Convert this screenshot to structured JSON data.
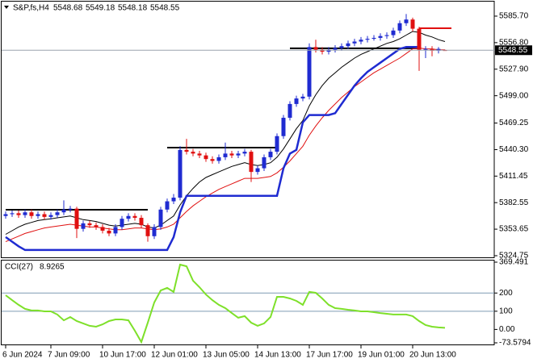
{
  "chart_data": [
    {
      "type": "candlestick",
      "title": "S&P,fs,H4",
      "categories": [
        "6 Jun 2024",
        null,
        null,
        null,
        null,
        null,
        null,
        "7 Jun 09:00",
        null,
        null,
        null,
        null,
        null,
        null,
        null,
        "10 Jun 17:00",
        null,
        null,
        null,
        null,
        null,
        null,
        null,
        "12 Jun 01:00",
        null,
        null,
        null,
        null,
        null,
        null,
        null,
        "13 Jun 05:00",
        null,
        null,
        null,
        null,
        null,
        null,
        null,
        "14 Jun 13:00",
        null,
        null,
        null,
        null,
        null,
        null,
        null,
        "17 Jun 17:00",
        null,
        null,
        null,
        null,
        null,
        null,
        null,
        "19 Jun 01:00",
        null,
        null,
        null,
        null,
        null,
        null,
        null,
        "20 Jun 13:00",
        null,
        null,
        null,
        null,
        null
      ],
      "open": [
        5368,
        5370,
        5371,
        5369,
        5372,
        5368,
        5370,
        5367,
        5369,
        5372,
        5375,
        5376,
        5354,
        5360,
        5358,
        5356,
        5352,
        5349,
        5356,
        5365,
        5368,
        5366,
        5358,
        5346,
        5356,
        5375,
        5384,
        5388,
        5440,
        5438,
        5436,
        5434,
        5430,
        5428,
        5432,
        5436,
        5434,
        5436,
        5438,
        5416,
        5420,
        5432,
        5438,
        5455,
        5475,
        5490,
        5496,
        5498,
        5552,
        5549,
        5547,
        5549,
        5551,
        5553,
        5556,
        5558,
        5560,
        5561,
        5562,
        5564,
        5565,
        5570,
        5578,
        5582,
        5572,
        5549,
        5550,
        5548,
        5548.68
      ],
      "high": [
        5373,
        5374,
        5374,
        5375,
        5375,
        5373,
        5373,
        5372,
        5375,
        5385,
        5379,
        5378,
        5363,
        5363,
        5361,
        5359,
        5355,
        5359,
        5368,
        5371,
        5371,
        5369,
        5360,
        5359,
        5378,
        5387,
        5392,
        5444,
        5452,
        5441,
        5439,
        5437,
        5433,
        5435,
        5448,
        5439,
        5439,
        5441,
        5440,
        5423,
        5435,
        5441,
        5458,
        5478,
        5493,
        5499,
        5501,
        5556,
        5560,
        5552,
        5552,
        5554,
        5556,
        5559,
        5561,
        5563,
        5564,
        5565,
        5567,
        5568,
        5573,
        5581,
        5588,
        5584,
        5574,
        5553,
        5553,
        5552,
        5549.18
      ],
      "low": [
        5365,
        5367,
        5366,
        5366,
        5365,
        5365,
        5364,
        5364,
        5366,
        5369,
        5372,
        5344,
        5351,
        5355,
        5353,
        5349,
        5346,
        5346,
        5353,
        5362,
        5363,
        5355,
        5340,
        5343,
        5353,
        5372,
        5381,
        5385,
        5435,
        5433,
        5431,
        5427,
        5425,
        5425,
        5429,
        5431,
        5431,
        5433,
        5405,
        5413,
        5417,
        5429,
        5435,
        5452,
        5472,
        5487,
        5493,
        5495,
        5546,
        5544,
        5544,
        5546,
        5548,
        5550,
        5553,
        5555,
        5557,
        5559,
        5559,
        5561,
        5562,
        5567,
        5575,
        5569,
        5526,
        5540,
        5542,
        5545,
        5548.18
      ],
      "close": [
        5370,
        5371,
        5369,
        5372,
        5368,
        5370,
        5367,
        5369,
        5372,
        5375,
        5376,
        5354,
        5360,
        5358,
        5356,
        5352,
        5349,
        5356,
        5365,
        5368,
        5366,
        5358,
        5346,
        5356,
        5375,
        5384,
        5388,
        5440,
        5438,
        5436,
        5434,
        5430,
        5428,
        5432,
        5436,
        5434,
        5436,
        5438,
        5416,
        5420,
        5432,
        5438,
        5455,
        5475,
        5490,
        5496,
        5498,
        5552,
        5549,
        5547,
        5549,
        5551,
        5553,
        5556,
        5558,
        5560,
        5561,
        5562,
        5564,
        5565,
        5570,
        5578,
        5582,
        5572,
        5549,
        5550,
        5548,
        5550,
        5548.55
      ],
      "up_color": "#1f2bd1",
      "down_color": "#e01010",
      "series": [
        {
          "color": "#000000",
          "values": [
            5348,
            5352,
            5356,
            5359,
            5361,
            5363,
            5364,
            5365,
            5366,
            5367,
            5368,
            5366,
            5364,
            5363,
            5362,
            5360,
            5358,
            5357,
            5358,
            5359,
            5360,
            5359,
            5356,
            5355,
            5358,
            5363,
            5368,
            5380,
            5390,
            5398,
            5405,
            5410,
            5413,
            5416,
            5419,
            5422,
            5424,
            5426,
            5424,
            5423,
            5424,
            5426,
            5432,
            5441,
            5452,
            5463,
            5472,
            5488,
            5500,
            5510,
            5518,
            5524,
            5530,
            5535,
            5540,
            5544,
            5547,
            5550,
            5553,
            5556,
            5558,
            5561,
            5565,
            5569,
            5568,
            5565,
            5563,
            5560,
            5558
          ]
        },
        {
          "color": "#e01010",
          "values": [
            5340,
            5343,
            5346,
            5349,
            5351,
            5353,
            5355,
            5356,
            5357,
            5358,
            5359,
            5358,
            5357,
            5356,
            5356,
            5355,
            5354,
            5353,
            5353,
            5354,
            5355,
            5355,
            5354,
            5353,
            5354,
            5356,
            5359,
            5366,
            5373,
            5379,
            5384,
            5389,
            5393,
            5397,
            5400,
            5403,
            5406,
            5409,
            5409,
            5409,
            5410,
            5411,
            5415,
            5421,
            5428,
            5436,
            5444,
            5456,
            5466,
            5475,
            5483,
            5490,
            5497,
            5503,
            5509,
            5514,
            5519,
            5524,
            5528,
            5532,
            5536,
            5540,
            5545,
            5550,
            5551,
            5550,
            5550,
            5549,
            5549
          ]
        },
        {
          "color": "#1f2bd1",
          "values": [
            5345,
            5340,
            5335,
            5331,
            5331,
            5331,
            5331,
            5331,
            5331,
            5331,
            5331,
            5331,
            5331,
            5331,
            5331,
            5331,
            5331,
            5331,
            5331,
            5331,
            5331,
            5331,
            5331,
            5331,
            5331,
            5331,
            5345,
            5372,
            5390,
            5390,
            5390,
            5390,
            5390,
            5390,
            5390,
            5390,
            5390,
            5390,
            5390,
            5390,
            5390,
            5390,
            5390,
            5420,
            5436,
            5440,
            5470,
            5478,
            5478,
            5478,
            5478,
            5480,
            5490,
            5500,
            5510,
            5518,
            5525,
            5530,
            5535,
            5540,
            5545,
            5550,
            5552,
            5552,
            5552,
            null,
            null,
            null,
            null
          ]
        }
      ],
      "levels": [
        {
          "value": 5374.8,
          "start": 0,
          "end": 22,
          "color": "#000000"
        },
        {
          "value": 5442.5,
          "start": 25,
          "end": 42,
          "color": "#000000"
        },
        {
          "value": 5550.6,
          "start": 44,
          "end": 64,
          "color": "#000000"
        },
        {
          "value": 5572.5,
          "start": 64,
          "end": 69,
          "color": "#e01010"
        }
      ],
      "ylim": [
        5322.1,
        5601.5
      ],
      "yticks": [
        {
          "value": 5585.7,
          "label": "5585.70"
        },
        {
          "value": 5556.8,
          "label": "5556.80"
        },
        {
          "value": 5527.9,
          "label": "5527.90"
        },
        {
          "value": 5499,
          "label": "5499.00"
        },
        5469.25,
        {
          "value": 5440.3,
          "label": "5440.30"
        },
        5411.45,
        5382.55,
        5353.65,
        5324.75
      ]
    },
    {
      "type": "line",
      "title": "CCI(27)",
      "color": "#7ee02a",
      "values": [
        188,
        161,
        135,
        113,
        104,
        104,
        99,
        99,
        82,
        50,
        68,
        46,
        33,
        20,
        15,
        28,
        46,
        55,
        55,
        50,
        -7,
        -69,
        37,
        148,
        214,
        228,
        206,
        356,
        347,
        268,
        232,
        192,
        161,
        135,
        117,
        90,
        64,
        73,
        37,
        20,
        33,
        68,
        179,
        179,
        170,
        157,
        135,
        206,
        201,
        170,
        135,
        117,
        113,
        108,
        104,
        99,
        99,
        95,
        90,
        86,
        82,
        82,
        82,
        73,
        46,
        24,
        15,
        11,
        8.9265
      ],
      "levels": [
        200,
        100
      ],
      "ylim": [
        -73.5794,
        369.491
      ],
      "yticks": [
        369.491,
        200,
        100,
        {
          "value": 0,
          "label": "0.00"
        },
        -73.5794
      ]
    }
  ]
}
